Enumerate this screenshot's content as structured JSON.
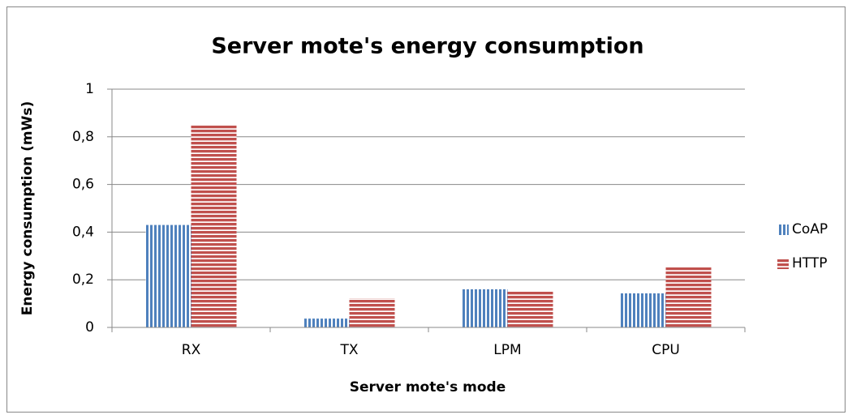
{
  "chart_data": {
    "type": "bar",
    "title": "Server mote's energy consumption",
    "x_label": "Server mote's mode",
    "y_label": "Energy consumption (mWs)",
    "categories": [
      "RX",
      "TX",
      "LPM",
      "CPU"
    ],
    "series": [
      {
        "name": "CoAP",
        "color": "#4f81bd",
        "values": [
          0.43,
          0.037,
          0.16,
          0.143
        ]
      },
      {
        "name": "HTTP",
        "color": "#c0504d",
        "values": [
          0.85,
          0.122,
          0.15,
          0.255
        ]
      }
    ],
    "ylim": [
      0,
      1
    ],
    "yticks": [
      0,
      {
        "value": 0.2,
        "label": "0,2"
      },
      {
        "value": 0.4,
        "label": "0,4"
      },
      {
        "value": 0.6,
        "label": "0,6"
      },
      {
        "value": 0.8,
        "label": "0,8"
      },
      1
    ],
    "grid": true,
    "legend": "right"
  }
}
